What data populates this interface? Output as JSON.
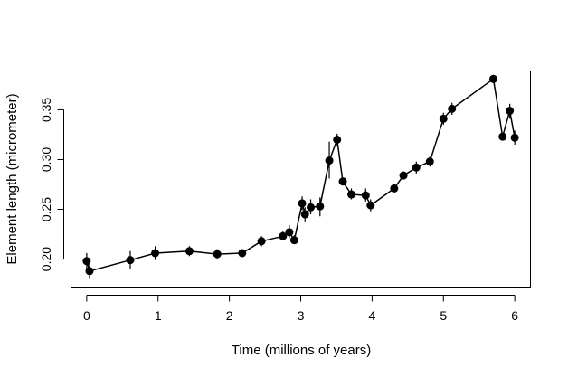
{
  "chart_data": {
    "type": "scatter",
    "xlabel": "Time (millions of years)",
    "ylabel": "Element length (micrometer)",
    "xlim": [
      -0.22,
      6.22
    ],
    "ylim": [
      0.171,
      0.389
    ],
    "x_ticks": [
      "0",
      "1",
      "2",
      "3",
      "4",
      "5",
      "6"
    ],
    "y_ticks": [
      "0.20",
      "0.25",
      "0.30",
      "0.35"
    ],
    "grid": false,
    "legend": "none",
    "colors": {
      "line": "#000000",
      "points": "#000000",
      "frame": "#000000"
    },
    "series": [
      {
        "points": [
          {
            "x": 0.0,
            "y": 0.198,
            "lo": 0.19,
            "hi": 0.206
          },
          {
            "x": 0.04,
            "y": 0.188,
            "lo": 0.18,
            "hi": 0.196
          },
          {
            "x": 0.61,
            "y": 0.199,
            "lo": 0.19,
            "hi": 0.208
          },
          {
            "x": 0.96,
            "y": 0.206,
            "lo": 0.199,
            "hi": 0.213
          },
          {
            "x": 1.44,
            "y": 0.208,
            "lo": 0.203,
            "hi": 0.213
          },
          {
            "x": 1.83,
            "y": 0.205,
            "lo": 0.2,
            "hi": 0.21
          },
          {
            "x": 2.18,
            "y": 0.206,
            "lo": 0.202,
            "hi": 0.209
          },
          {
            "x": 2.45,
            "y": 0.218,
            "lo": 0.213,
            "hi": 0.223
          },
          {
            "x": 2.75,
            "y": 0.223,
            "lo": 0.219,
            "hi": 0.228
          },
          {
            "x": 2.84,
            "y": 0.227,
            "lo": 0.221,
            "hi": 0.234
          },
          {
            "x": 2.91,
            "y": 0.219,
            "lo": 0.215,
            "hi": 0.224
          },
          {
            "x": 3.02,
            "y": 0.256,
            "lo": 0.249,
            "hi": 0.263
          },
          {
            "x": 3.06,
            "y": 0.245,
            "lo": 0.237,
            "hi": 0.252
          },
          {
            "x": 3.14,
            "y": 0.252,
            "lo": 0.245,
            "hi": 0.26
          },
          {
            "x": 3.27,
            "y": 0.253,
            "lo": 0.243,
            "hi": 0.262
          },
          {
            "x": 3.4,
            "y": 0.299,
            "lo": 0.281,
            "hi": 0.318
          },
          {
            "x": 3.51,
            "y": 0.32,
            "lo": 0.314,
            "hi": 0.326
          },
          {
            "x": 3.59,
            "y": 0.278,
            "lo": 0.274,
            "hi": 0.282
          },
          {
            "x": 3.71,
            "y": 0.265,
            "lo": 0.26,
            "hi": 0.271
          },
          {
            "x": 3.91,
            "y": 0.264,
            "lo": 0.258,
            "hi": 0.271
          },
          {
            "x": 3.98,
            "y": 0.254,
            "lo": 0.248,
            "hi": 0.26
          },
          {
            "x": 4.31,
            "y": 0.271,
            "lo": 0.268,
            "hi": 0.274
          },
          {
            "x": 4.44,
            "y": 0.284,
            "lo": 0.28,
            "hi": 0.288
          },
          {
            "x": 4.62,
            "y": 0.292,
            "lo": 0.286,
            "hi": 0.298
          },
          {
            "x": 4.81,
            "y": 0.298,
            "lo": 0.293,
            "hi": 0.303
          },
          {
            "x": 5.0,
            "y": 0.341,
            "lo": 0.335,
            "hi": 0.347
          },
          {
            "x": 5.12,
            "y": 0.351,
            "lo": 0.345,
            "hi": 0.357
          },
          {
            "x": 5.7,
            "y": 0.381,
            "lo": 0.377,
            "hi": 0.385
          },
          {
            "x": 5.83,
            "y": 0.323,
            "lo": 0.319,
            "hi": 0.327
          },
          {
            "x": 5.93,
            "y": 0.349,
            "lo": 0.341,
            "hi": 0.356
          },
          {
            "x": 6.0,
            "y": 0.322,
            "lo": 0.315,
            "hi": 0.329
          }
        ]
      }
    ]
  }
}
